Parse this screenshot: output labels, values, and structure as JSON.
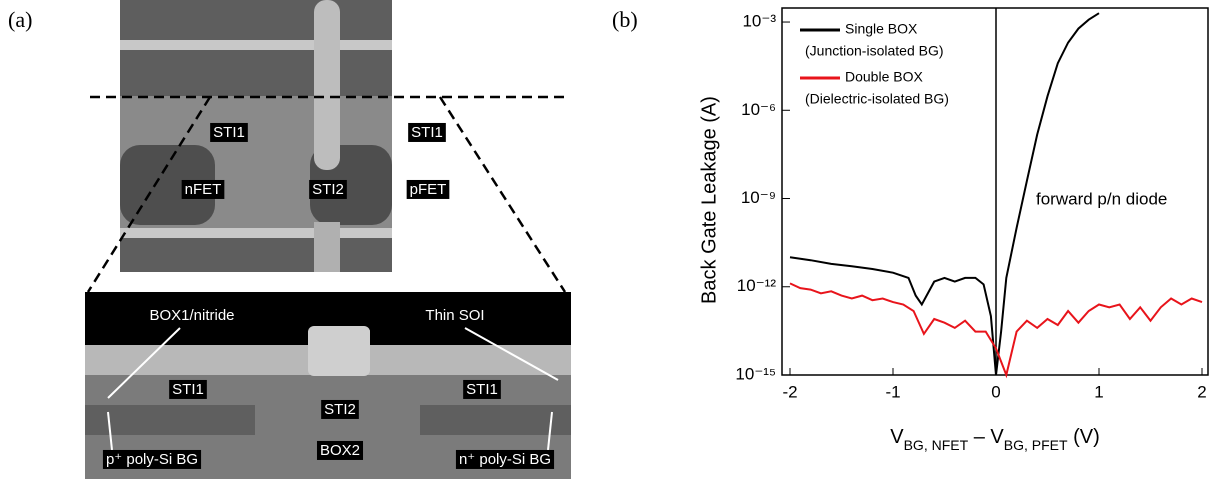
{
  "panel_a": {
    "label": "(a)",
    "top_labels": [
      "STI1",
      "STI1",
      "nFET",
      "STI2",
      "pFET"
    ],
    "bottom_labels": [
      "BOX1/nitride",
      "Thin SOI",
      "STI1",
      "STI1",
      "STI2",
      "BOX2",
      "p⁺ poly-Si BG",
      "n⁺ poly-Si BG"
    ]
  },
  "chart_data": {
    "type": "line",
    "panel_label": "(b)",
    "y_label": "Back Gate Leakage (A)",
    "x_label": [
      "V",
      "BG, NFET",
      " – V",
      "BG, PFET",
      " (V)"
    ],
    "annotation": "forward p/n diode",
    "log_y": true,
    "xlim": [
      -2,
      2
    ],
    "ylim": [
      1e-15,
      0.003
    ],
    "xticks": [
      -2,
      -1,
      0,
      1,
      2
    ],
    "yticks": [
      {
        "value": 1e-15,
        "label": "10⁻¹⁵"
      },
      {
        "value": 1e-12,
        "label": "10⁻¹²"
      },
      {
        "value": 1e-09,
        "label": "10⁻⁹"
      },
      {
        "value": 1e-06,
        "label": "10⁻⁶"
      },
      {
        "value": 0.001,
        "label": "10⁻³"
      }
    ],
    "legend": "upper left",
    "series": [
      {
        "name": "Single BOX",
        "legend_sublabel": "(Junction-isolated BG)",
        "color": "#000000",
        "x": [
          -2,
          -1.8,
          -1.6,
          -1.4,
          -1.2,
          -1,
          -0.85,
          -0.78,
          -0.72,
          -0.6,
          -0.5,
          -0.4,
          -0.3,
          -0.2,
          -0.12,
          -0.05,
          0,
          0.05,
          0.1,
          0.2,
          0.3,
          0.4,
          0.5,
          0.6,
          0.7,
          0.8,
          0.9,
          1.0
        ],
        "values": [
          1e-11,
          8e-12,
          6e-12,
          5e-12,
          4e-12,
          3e-12,
          2e-12,
          5e-13,
          2.5e-13,
          1.5e-12,
          2e-12,
          1.5e-12,
          2e-12,
          2e-12,
          1.2e-12,
          1e-13,
          1e-15,
          3e-14,
          2e-12,
          1e-10,
          4e-09,
          1.5e-07,
          3e-06,
          4e-05,
          0.0002,
          0.0006,
          0.0012,
          0.002
        ]
      },
      {
        "name": "Double BOX",
        "legend_sublabel": "(Dielectric-isolated BG)",
        "color": "#e8141b",
        "x": [
          -2,
          -1.9,
          -1.8,
          -1.7,
          -1.6,
          -1.5,
          -1.4,
          -1.3,
          -1.2,
          -1.1,
          -1,
          -0.9,
          -0.8,
          -0.7,
          -0.6,
          -0.5,
          -0.4,
          -0.3,
          -0.2,
          -0.1,
          0,
          0.1,
          0.2,
          0.3,
          0.4,
          0.5,
          0.6,
          0.7,
          0.8,
          0.9,
          1,
          1.1,
          1.2,
          1.3,
          1.4,
          1.5,
          1.6,
          1.7,
          1.8,
          1.9,
          2
        ],
        "values": [
          1.3e-12,
          9e-13,
          8e-13,
          6e-13,
          7e-13,
          5e-13,
          4e-13,
          5e-13,
          3.5e-13,
          4e-13,
          3e-13,
          2.5e-13,
          1.5e-13,
          2.5e-14,
          8e-14,
          6e-14,
          4e-14,
          7e-14,
          3e-14,
          3e-14,
          8e-15,
          1e-15,
          3e-14,
          7e-14,
          4e-14,
          8e-14,
          5e-14,
          1.5e-13,
          6e-14,
          1.5e-13,
          2.5e-13,
          2e-13,
          2.5e-13,
          8e-14,
          2e-13,
          7e-14,
          2e-13,
          4e-13,
          2.5e-13,
          4e-13,
          3e-13
        ]
      }
    ]
  }
}
